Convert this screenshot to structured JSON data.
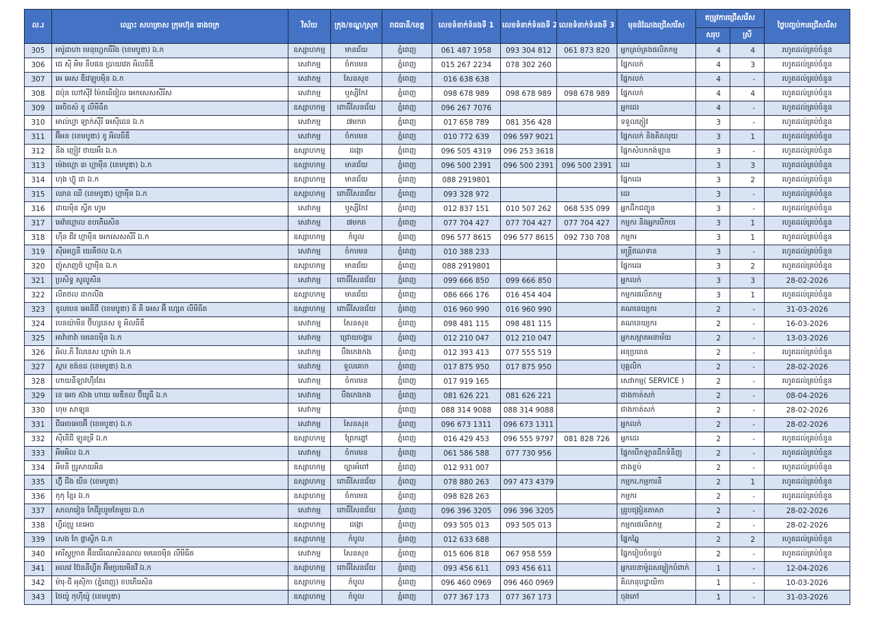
{
  "colors": {
    "header_bg": "#4472c4",
    "row_alt_bg": "#dae3f3",
    "border": "#1f2a44",
    "header_text": "#ffffff",
    "body_text": "#1b2430"
  },
  "table": {
    "headers": {
      "no": "ល.រ",
      "company": "ឈ្មោះ សហគ្រាស ក្រុមហ៊ុន រោងចក្រ",
      "sector": "វិស័យ",
      "district": "ក្រុង/ខណ្ឌ/ស្រុក",
      "province": "រាជធានី/ខេត្ត",
      "phone1": "លេខទំនាក់ទំនងទី 1",
      "phone2": "លេខទំនាក់ទំនងទី 2",
      "phone3": "លេខទំនាក់ទំនងទី 3",
      "position": "មុខដំណែងជ្រើសរើស",
      "need": "តម្រូវការជ្រើសរើស",
      "need_total": "សរុប",
      "need_female": "ស្រី",
      "end_date": "ថ្ងៃបញ្ចប់ការជ្រើសរើស"
    },
    "rows": [
      [
        "305",
        "អារ៉ូដាហា មេនុហ្វេកធឺរីង (ខេមបូឌា) ឯ.ក",
        "ឧស្សាហកម្ម",
        "មានជ័យ",
        "ភ្នំពេញ",
        "061 487 1958",
        "093 304 812",
        "061 873 820",
        "អ្នកគ្រប់គ្រងផលិតកម្ម",
        "4",
        "4",
        "រហូតដល់គ្រប់ចំនួន"
      ],
      [
        "306",
        "ជេ ស៊ី អិម នីបផន ប្រាយវេត អិលធីឌី",
        "សេវាកម្ម",
        "ចំការមន",
        "ភ្នំពេញ",
        "015 267 2234",
        "078 302 260",
        "",
        "ផ្នែកលក់",
        "4",
        "3",
        "រហូតដល់គ្រប់ចំនួន"
      ],
      [
        "307",
        "អេ អេស ឌីវេឡុបមុិន ឯ.ក",
        "សេវាកម្ម",
        "សែនសុខ",
        "ភ្នំពេញ",
        "016 638 638",
        "",
        "",
        "ផ្នែកលក់",
        "4",
        "-",
        "រហូតដល់គ្រប់ចំនួន"
      ],
      [
        "308",
        "ជប៉ុន ហៅស៊ីវ៍ ម៉ែតធើរៀល អេកសេសសឺរីស",
        "សេវាកម្ម",
        "ឬស្សីកែវ",
        "ភ្នំពេញ",
        "098 678 989",
        "098 678 989",
        "098 678 989",
        "ផ្នែកលក់",
        "4",
        "4",
        "រហូតដល់គ្រប់ចំនួន"
      ],
      [
        "309",
        "អេចិចស៍ ខូ លីមីធីត",
        "ឧស្សាហកម្ម",
        "ពោធិ៍សែនជ័យ",
        "ភ្នំពេញ",
        "096 267 7076",
        "",
        "",
        "អ្នកដេរ",
        "4",
        "-",
        "រហូតដល់គ្រប់ចំនួន"
      ],
      [
        "310",
        "អាល់ហ្វា ឡាក់ស៊ីរី អេស៊ីដេន ឯ.ក",
        "សេវាកម្ម",
        "៧មករា",
        "ភ្នំពេញ",
        "017 658 789",
        "081 356 428",
        "",
        "ទទួលភ្ញៀវ",
        "3",
        "-",
        "រហូតដល់គ្រប់ចំនួន"
      ],
      [
        "311",
        "អ៊ីអន (ខេមបូឌា) ខូ អិលធីឌី",
        "សេវាកម្ម",
        "ចំការមន",
        "ភ្នំពេញ",
        "010 772 639",
        "096 597 9021",
        "",
        "ផ្នែកលក់ និងគិតលុយ",
        "3",
        "1",
        "រហូតដល់គ្រប់ចំនួន"
      ],
      [
        "312",
        "នីង ញៀវ ថាយអឺរ ឯ.ក",
        "ឧស្សាហកម្ម",
        "ដង្កោ",
        "ភ្នំពេញ",
        "096 505 4319",
        "096 253 3618",
        "",
        "ផ្នែកសំបកកង់ឡាន",
        "3",
        "-",
        "រហូតដល់គ្រប់ចំនួន"
      ],
      [
        "313",
        "ម៉េងហ្គោ ៣ ហ្គាមុីន (ខេមបូឌា) ឯ.ក",
        "ឧស្សាហកម្ម",
        "មានជ័យ",
        "ភ្នំពេញ",
        "096 500 2391",
        "096 500 2391",
        "096 500 2391",
        "ដេរ",
        "3",
        "3",
        "រហូតដល់គ្រប់ចំនួន"
      ],
      [
        "314",
        "ហុង ហ៊្វូ ដា ឯ.ក",
        "ឧស្សាហកម្ម",
        "មានជ័យ",
        "ភ្នំពេញ",
        "088 2919801",
        "",
        "",
        "ផ្នែកដេរ",
        "3",
        "2",
        "រហូតដល់គ្រប់ចំនួន"
      ],
      [
        "315",
        "ឈាន ឈី (ខេមបូឌា) ហ្គាមុីន ឯ.ក",
        "ឧស្សាហកម្ម",
        "ពោធិ៍សែនជ័យ",
        "ភ្នំពេញ",
        "093 328 972",
        "",
        "",
        "ដេរ",
        "3",
        "-",
        "រហូតដល់គ្រប់ចំនួន"
      ],
      [
        "316",
        "ដាយមុិន ស្វីត ហូម",
        "សេវាកម្ម",
        "ឬស្សីកែវ",
        "ភ្នំពេញ",
        "012 837 151",
        "010 507 262",
        "068 535 099",
        "អ្នកដឹកជញ្ជូន",
        "3",
        "-",
        "រហូតដល់គ្រប់ចំនួន"
      ],
      [
        "317",
        "អេវ៉ាហ្គោល ខបភើរេសិន",
        "សេវាកម្ម",
        "៧មករា",
        "ភ្នំពេញ",
        "077 704 427",
        "077 704 427",
        "077 704 427",
        "កម្មករ និងអ្នកបើកបរ",
        "3",
        "1",
        "រហូតដល់គ្រប់ចំនួន"
      ],
      [
        "318",
        "ហ៊ីន ជីវ ហ្គាមុីន អេកសេសសឺរី ឯ.ក",
        "ឧស្សាហកម្ម",
        "កំបូល",
        "ភ្នំពេញ",
        "096 577 8615",
        "096 577 8615",
        "092 730 708",
        "កម្មករ",
        "3",
        "1",
        "រហូតដល់គ្រប់ចំនួន"
      ],
      [
        "319",
        "ស៊ីអេហ្វនី យេគីថល ឯ.ក",
        "សេវាកម្ម",
        "ចំការមន",
        "ភ្នំពេញ",
        "010 388 233",
        "",
        "",
        "មន្ត្រីឥណទាន",
        "3",
        "-",
        "រហូតដល់គ្រប់ចំនួន"
      ],
      [
        "320",
        "ញ៉ូសាញថ៍ ហ្គាមុីន ឯ.ក",
        "ឧស្សាហកម្ម",
        "មានជ័យ",
        "ភ្នំពេញ",
        "088 2919801",
        "",
        "",
        "ផ្នែកដេរ",
        "3",
        "2",
        "រហូតដល់គ្រប់ចំនួន"
      ],
      [
        "321",
        "ប្រសិទ្ធ សូលូសិន",
        "សេវាកម្ម",
        "ពោធិ៍សែនជ័យ",
        "ភ្នំពេញ",
        "099 666 850",
        "099 666 850",
        "",
        "អ្នកលក់",
        "3",
        "3",
        "28-02-2026"
      ],
      [
        "322",
        "លីតថល ដាកលីង",
        "ឧស្សាហកម្ម",
        "មានជ័យ",
        "ភ្នំពេញ",
        "086 666 176",
        "016 454 404",
        "",
        "កម្មករផលិតកម្ម",
        "3",
        "1",
        "រហូតដល់គ្រប់ចំនួន"
      ],
      [
        "323",
        "ខូលបេន អេនើជី (ខេមបូឌា) គី គី អេស អ៊ី ហ្សេត លីមីធីត",
        "ឧស្សាហកម្ម",
        "ពោធិ៍សែនជ័យ",
        "ភ្នំពេញ",
        "016 960 990",
        "016 960 990",
        "",
        "គណនេយ្យករ",
        "2",
        "-",
        "31-03-2026"
      ],
      [
        "324",
        "បេនយ៉ាមីន ប៊ីហ្សនេស ខូ អិលធីឌី",
        "សេវាកម្ម",
        "សែនសុខ",
        "ភ្នំពេញ",
        "098 481 115",
        "098 481 115",
        "",
        "គណនេយ្យករ",
        "2",
        "-",
        "16-03-2026"
      ],
      [
        "325",
        "អាវ៉ាខាវ៉ា មេនេចមុិន ឯ.ក",
        "សេវាកម្ម",
        "ជ្រោយចង្វារ",
        "ភ្នំពេញ",
        "012 210 047",
        "012 210 047",
        "",
        "អ្នកសម្អាតអនាម័យ",
        "2",
        "-",
        "13-03-2026"
      ],
      [
        "326",
        "អិល.ភី វីលនេស ហ្វាម៉ា ឯ.ក",
        "សេវាកម្ម",
        "បឹងកេងកង",
        "ភ្នំពេញ",
        "012 393 413",
        "077 555 519",
        "",
        "អនុប្រធាន",
        "2",
        "-",
        "រហូតដល់គ្រប់ចំនួន"
      ],
      [
        "327",
        "ស្តារ ខង់ខដ (ខេមបូឌា) ឯ.ក",
        "សេវាកម្ម",
        "ទួលគោក",
        "ភ្នំពេញ",
        "017 875 950",
        "017 875 950",
        "",
        "បុគ្គលិក",
        "2",
        "-",
        "28-02-2026"
      ],
      [
        "328",
        "ហាយនីឡាវហ៊ីរតែរ",
        "សេវាកម្ម",
        "ចំការមន",
        "ភ្នំពេញ",
        "017 919 165",
        "",
        "",
        "សេវាកម្ម( SERVICE )",
        "2",
        "-",
        "រហូតដល់គ្រប់ចំនួន"
      ],
      [
        "329",
        "ខេ អេច ស៊ាង ហាយ មេឌីខល ប៊ីយូធី ឯ.ក",
        "សេវាកម្ម",
        "បឹងកេងកង",
        "ភ្នំពេញ",
        "081 626 221",
        "081 626 221",
        "",
        "ជាងកាត់សក់",
        "2",
        "-",
        "08-04-2026"
      ],
      [
        "330",
        "ហុម សាឡុន",
        "សេវាកម្ម",
        "",
        "ភ្នំពេញ",
        "088 314 9088",
        "088 314 9088",
        "",
        "ជាងកាត់សក់",
        "2",
        "-",
        "28-02-2026"
      ],
      [
        "331",
        "ជីអេចអេចអ៊ី (ខេមបូឌា) ឯ.ក",
        "សេវាកម្ម",
        "សែនសុខ",
        "ភ្នំពេញ",
        "096 673 1311",
        "096 673 1311",
        "",
        "អ្នកលក់",
        "2",
        "-",
        "28-02-2026"
      ],
      [
        "332",
        "ស៊ីនើជី ឡូនទ្រី ឯ.ក",
        "ឧស្សាហកម្ម",
        "ព្រែកព្នៅ",
        "ភ្នំពេញ",
        "016 429 453",
        "096 555 9797",
        "081 828 726",
        "អ្នកដេរ",
        "2",
        "-",
        "រហូតដល់គ្រប់ចំនួន"
      ],
      [
        "333",
        "អីមអិល ឯ.ក",
        "សេវាកម្ម",
        "ចំការមន",
        "ភ្នំពេញ",
        "061 586 588",
        "077 730 956",
        "",
        "ផ្នែកបើកឡានដឹកទំនិញ",
        "2",
        "-",
        "រហូតដល់គ្រប់ចំនួន"
      ],
      [
        "334",
        "អីមនី ប្រូសាយអិន",
        "ឧស្សាហកម្ម",
        "ច្បារអំពៅ",
        "ភ្នំពេញ",
        "012 931 007",
        "",
        "",
        "ជាងខ្ទប់",
        "2",
        "-",
        "រហូតដល់គ្រប់ចំនួន"
      ],
      [
        "335",
        "ហ៊្វី ជីង យីន (ខេមបូឌា)",
        "ឧស្សាហកម្ម",
        "ពោធិ៍សែនជ័យ",
        "ភ្នំពេញ",
        "078 880 263",
        "097 473 4379",
        "",
        "កម្មករ,កម្មការនី",
        "2",
        "1",
        "រហូតដល់គ្រប់ចំនួន"
      ],
      [
        "336",
        "កុកុ ខ្មែរ ឯ.ក",
        "ឧស្សាហកម្ម",
        "ចំការមន",
        "ភ្នំពេញ",
        "098 828 263",
        "",
        "",
        "កម្មករ",
        "2",
        "-",
        "រហូតដល់គ្រប់ចំនួន"
      ],
      [
        "337",
        "សាលារៀន កែជីរូបរួមតែមួយ ឯ.ក",
        "សេវាកម្ម",
        "ពោធិ៍សែនជ័យ",
        "ភ្នំពេញ",
        "096 396 3205",
        "096 396 3205",
        "",
        "គ្រូបង្រៀនភាសា",
        "2",
        "-",
        "28-02-2026"
      ],
      [
        "338",
        "ហ្វីដប្រូ ខេអេច",
        "ឧស្សាហកម្ម",
        "ដង្កោ",
        "ភ្នំពេញ",
        "093 505 013",
        "093 505 013",
        "",
        "កម្មករផលិតកម្ម",
        "2",
        "-",
        "28-02-2026"
      ],
      [
        "339",
        "សេង កែ ផ្លាស្ទីក ឯ.ក",
        "ឧស្សាហកម្ម",
        "កំបូល",
        "ភ្នំពេញ",
        "012 633 688",
        "",
        "",
        "ផ្នែកឆ្នៃ",
        "2",
        "2",
        "រហូតដល់គ្រប់ចំនួន"
      ],
      [
        "340",
        "អារីស្តូក្រាត អ៊ីនធើណេសិនណល មេនេចមុិន លីមីធីត",
        "សេវាកម្ម",
        "សែនសុខ",
        "ភ្នំពេញ",
        "015 606 818",
        "067 958 559",
        "",
        "ផ្នែករៀបចំបន្ទប់",
        "2",
        "-",
        "រហូតដល់គ្រប់ចំនួន"
      ],
      [
        "341",
        "អលវេ ប៊ែននីហ្វីត អ៊ីមប្រយមិនវី ឯ.ក",
        "ឧស្សាហកម្ម",
        "ពោធិ៍សែនជ័យ",
        "ភ្នំពេញ",
        "093 456 611",
        "093 456 611",
        "",
        "អ្នករចនាម៉ូដសម្លៀកបំពាក់",
        "1",
        "-",
        "12-04-2026"
      ],
      [
        "342",
        "ម៉ារុ-ជី អុសុិកា (ភ្នំពេញ) ខបភើរេសិន",
        "ឧស្សាហកម្ម",
        "កំបូល",
        "ភ្នំពេញ",
        "096 460 0969",
        "096 460 0969",
        "",
        "គិលានុបដ្ឋាយិកា",
        "1",
        "-",
        "10-03-2026"
      ],
      [
        "343",
        "ថៃយ៉ូ កុហ៊ីយ៉ូ (ខេមបូឌា)",
        "ឧស្សាហកម្ម",
        "កំបូល",
        "ភ្នំពេញ",
        "077 367 173",
        "077 367 173",
        "",
        "ចុងភៅ",
        "1",
        "-",
        "31-03-2026"
      ]
    ]
  }
}
